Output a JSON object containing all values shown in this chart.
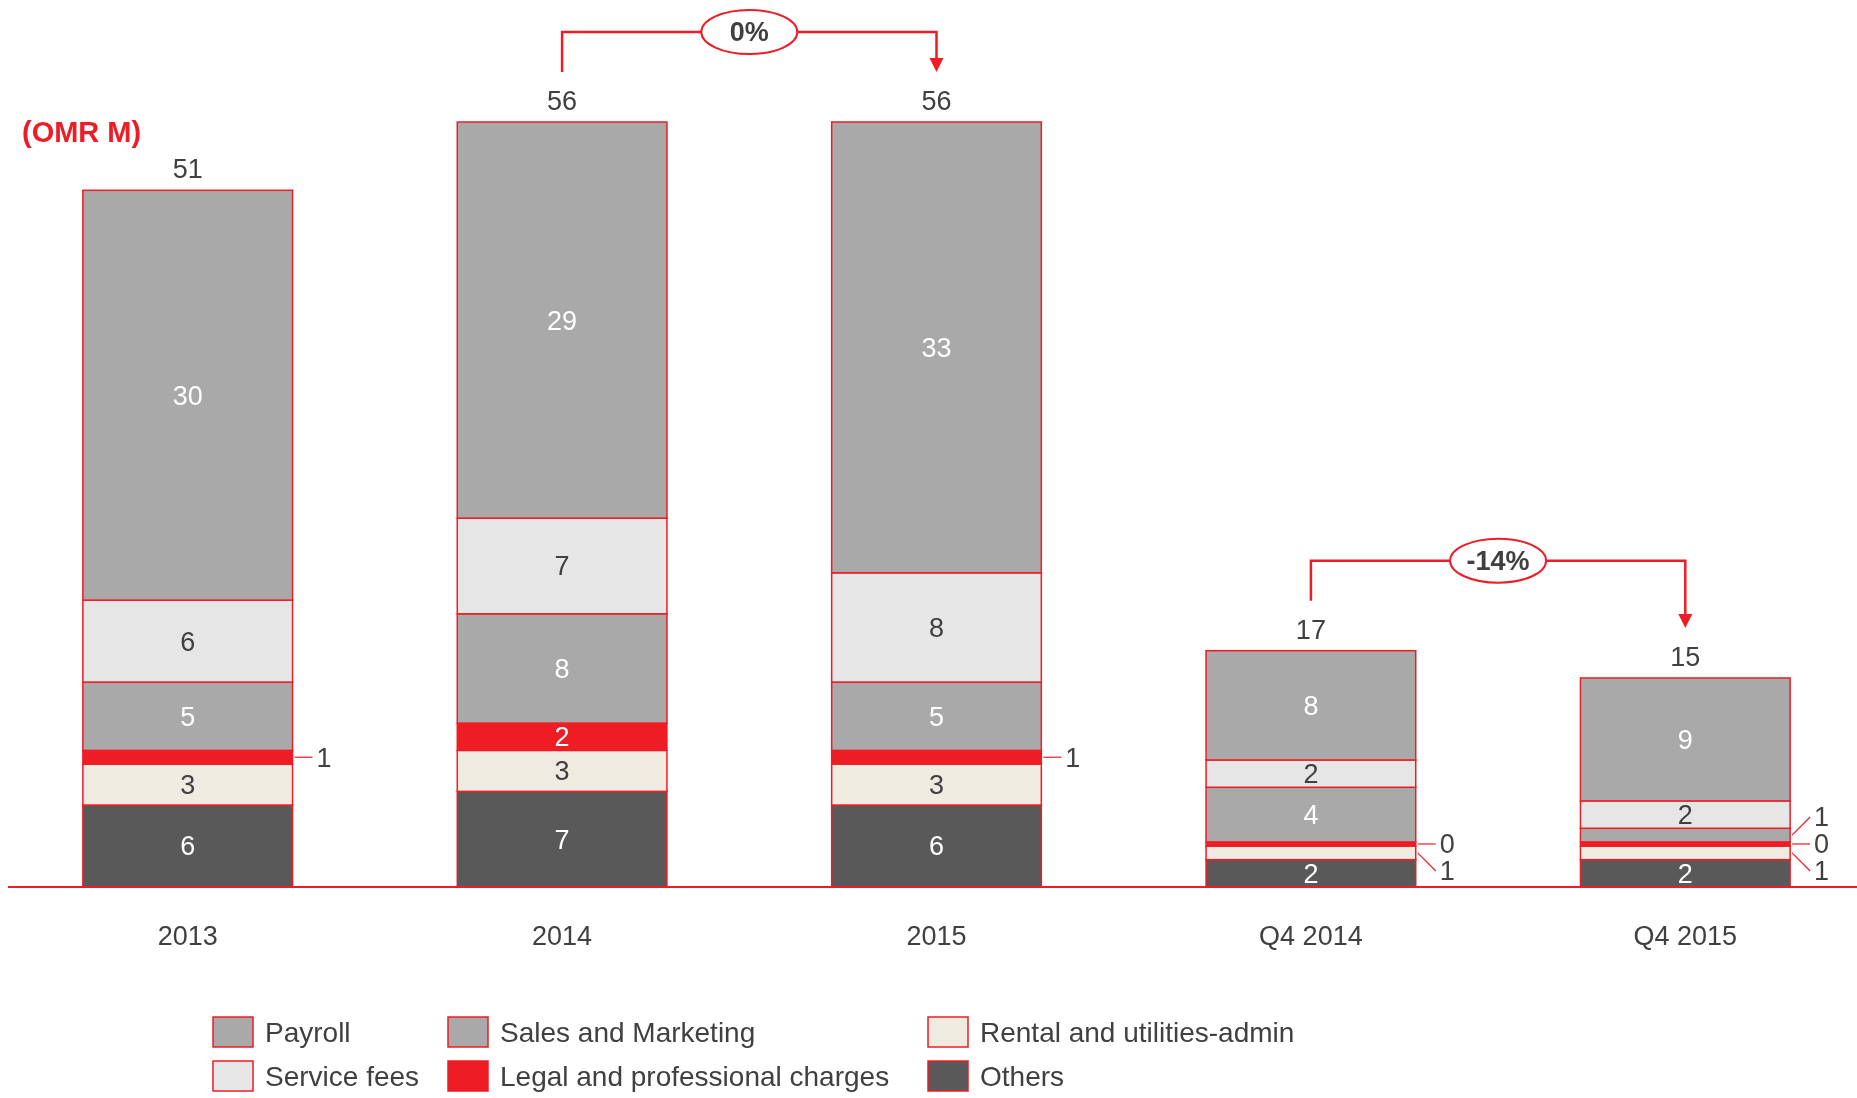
{
  "chart_data": {
    "type": "bar",
    "stacked": true,
    "categories": [
      "2013",
      "2014",
      "2015",
      "Q4 2014",
      "Q4 2015"
    ],
    "series": [
      {
        "name": "Others",
        "color": "#595959",
        "values": [
          6,
          7,
          6,
          2,
          2
        ]
      },
      {
        "name": "Rental and utilities-admin",
        "color": "#efebe0",
        "values": [
          3,
          3,
          3,
          1,
          1
        ]
      },
      {
        "name": "Legal and professional charges",
        "color": "#ee1c25",
        "values": [
          1,
          2,
          1,
          0.3,
          0.3
        ],
        "value_labels": [
          "1",
          "2",
          "1",
          "0",
          "0"
        ]
      },
      {
        "name": "Sales and Marketing",
        "color": "#a9a9a9",
        "values": [
          5,
          8,
          5,
          4,
          1
        ]
      },
      {
        "name": "Service fees",
        "color": "#e6e6e6",
        "values": [
          6,
          7,
          8,
          2,
          2
        ]
      },
      {
        "name": "Payroll",
        "color": "#a9a9a9",
        "values": [
          30,
          29,
          33,
          8,
          9
        ]
      }
    ],
    "totals": [
      "51",
      "56",
      "56",
      "17",
      "15"
    ],
    "data_labels": true,
    "legend": "bottom",
    "annotations": [
      "(OMR M)",
      "0%",
      "-14%"
    ]
  }
}
